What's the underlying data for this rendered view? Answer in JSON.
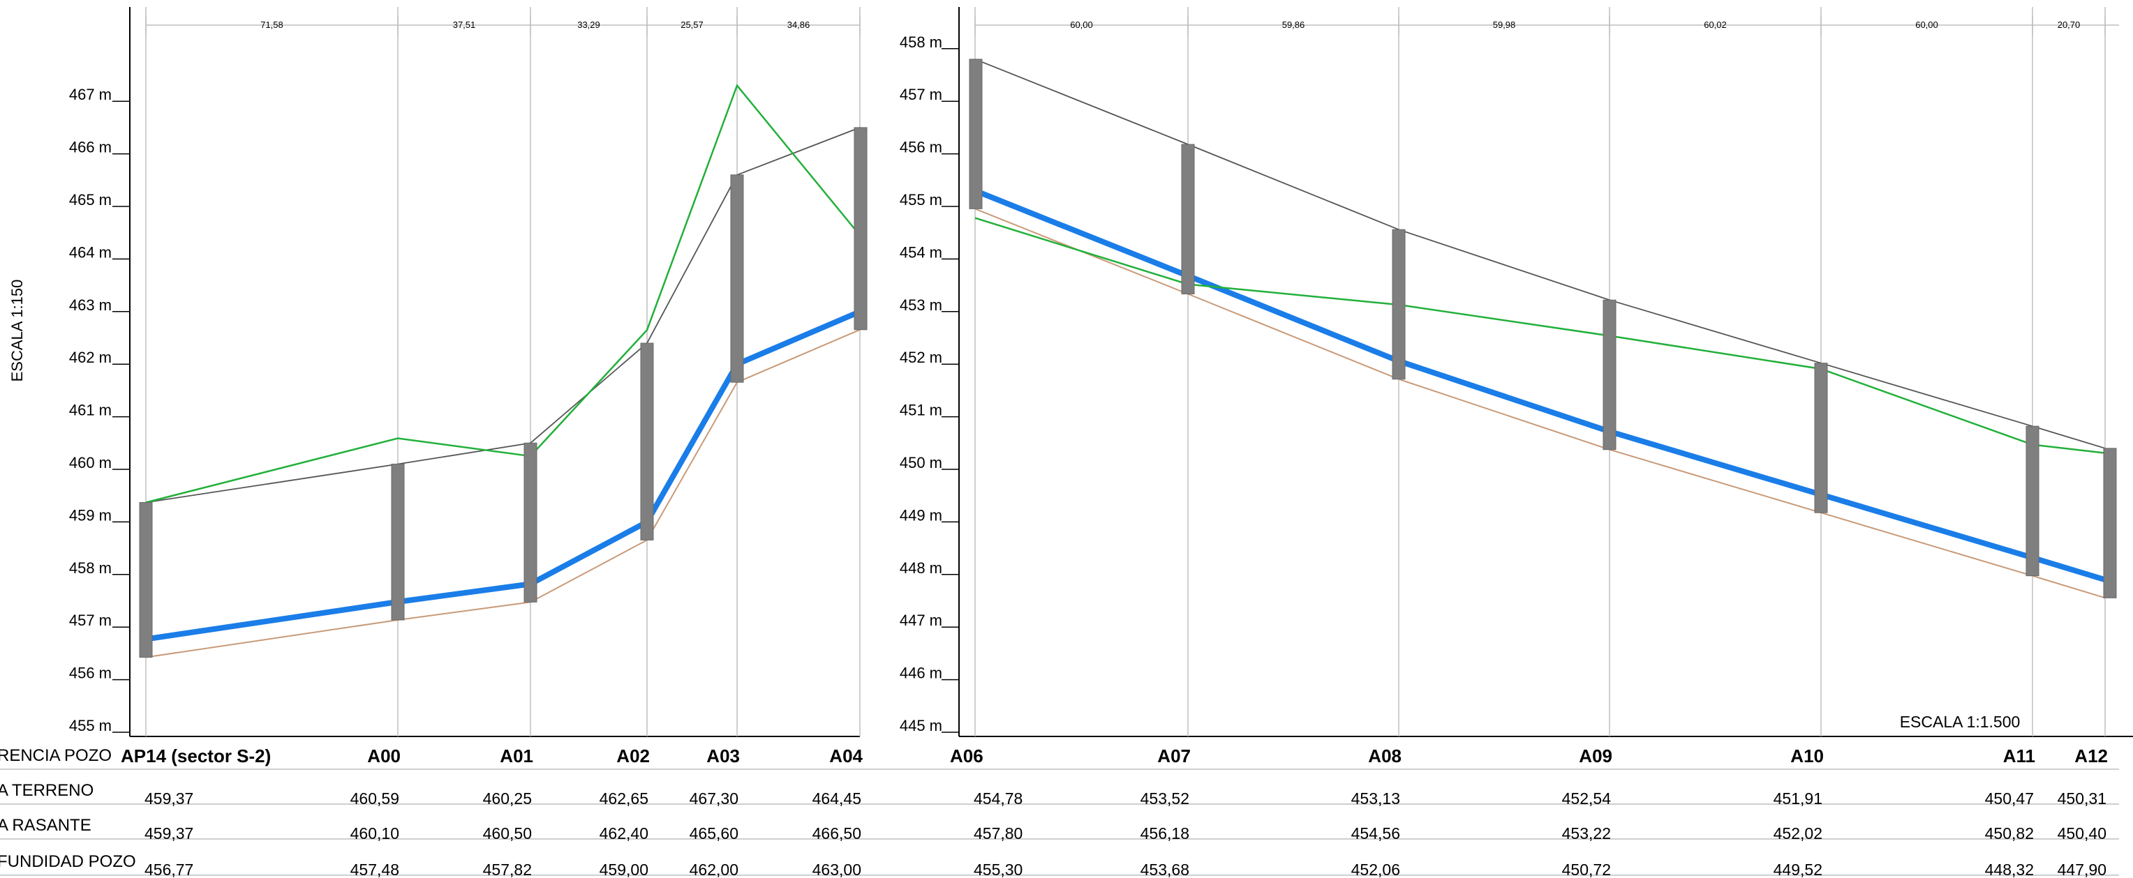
{
  "left_profile": {
    "axis_labels": [
      "455 m",
      "456 m",
      "457 m",
      "458 m",
      "459 m",
      "460 m",
      "461 m",
      "462 m",
      "463 m",
      "464 m",
      "465 m",
      "466 m",
      "467 m"
    ],
    "y_range": [
      455,
      468
    ],
    "scale_label": "ESCALA 1:150",
    "wells": [
      {
        "name": "AP14 (sector S-2)",
        "terreno": 459.37,
        "rasante": 459.37,
        "fondo": 456.77,
        "terreno_label": "459,37",
        "rasante_label": "459,37",
        "fondo_label": "456,77"
      },
      {
        "name": "A00",
        "terreno": 460.59,
        "rasante": 460.1,
        "fondo": 457.48,
        "terreno_label": "460,59",
        "rasante_label": "460,10",
        "fondo_label": "457,48"
      },
      {
        "name": "A01",
        "terreno": 460.25,
        "rasante": 460.5,
        "fondo": 457.82,
        "terreno_label": "460,25",
        "rasante_label": "460,50",
        "fondo_label": "457,82"
      },
      {
        "name": "A02",
        "terreno": 462.65,
        "rasante": 462.4,
        "fondo": 459.0,
        "terreno_label": "462,65",
        "rasante_label": "462,40",
        "fondo_label": "459,00"
      },
      {
        "name": "A03",
        "terreno": 467.3,
        "rasante": 465.6,
        "fondo": 462.0,
        "terreno_label": "467,30",
        "rasante_label": "465,60",
        "fondo_label": "462,00"
      },
      {
        "name": "A04",
        "terreno": 464.45,
        "rasante": 466.5,
        "fondo": 463.0,
        "terreno_label": "464,45",
        "rasante_label": "466,50",
        "fondo_label": "463,00"
      }
    ],
    "distances": [
      "71,58",
      "37,51",
      "33,29",
      "25,57",
      "34,86"
    ]
  },
  "right_profile": {
    "axis_labels": [
      "445 m",
      "446 m",
      "447 m",
      "448 m",
      "449 m",
      "450 m",
      "451 m",
      "452 m",
      "453 m",
      "454 m",
      "455 m",
      "456 m",
      "457 m",
      "458 m"
    ],
    "y_range": [
      445,
      458.3
    ],
    "scale_label": "ESCALA 1:1.500",
    "wells": [
      {
        "name": "A06",
        "terreno": 454.78,
        "rasante": 457.8,
        "fondo": 455.3,
        "terreno_label": "454,78",
        "rasante_label": "457,80",
        "fondo_label": "455,30"
      },
      {
        "name": "A07",
        "terreno": 453.52,
        "rasante": 456.18,
        "fondo": 453.68,
        "terreno_label": "453,52",
        "rasante_label": "456,18",
        "fondo_label": "453,68"
      },
      {
        "name": "A08",
        "terreno": 453.13,
        "rasante": 454.56,
        "fondo": 452.06,
        "terreno_label": "453,13",
        "rasante_label": "454,56",
        "fondo_label": "452,06"
      },
      {
        "name": "A09",
        "terreno": 452.54,
        "rasante": 453.22,
        "fondo": 450.72,
        "terreno_label": "452,54",
        "rasante_label": "453,22",
        "fondo_label": "450,72"
      },
      {
        "name": "A10",
        "terreno": 451.91,
        "rasante": 452.02,
        "fondo": 449.52,
        "terreno_label": "451,91",
        "rasante_label": "452,02",
        "fondo_label": "449,52"
      },
      {
        "name": "A11",
        "terreno": 450.47,
        "rasante": 450.82,
        "fondo": 448.32,
        "terreno_label": "450,47",
        "rasante_label": "450,82",
        "fondo_label": "448,32"
      },
      {
        "name": "A12",
        "terreno": 450.31,
        "rasante": 450.4,
        "fondo": 447.9,
        "terreno_label": "450,31",
        "rasante_label": "450,40",
        "fondo_label": "447,90"
      }
    ],
    "distances": [
      "60,00",
      "59,86",
      "59,98",
      "60,02",
      "60,00",
      "20,70"
    ]
  },
  "rows": {
    "referencia": "RENCIA POZO",
    "terreno": "A TERRENO",
    "rasante": "A RASANTE",
    "profundidad": "FUNDIDAD POZO"
  },
  "colors": {
    "terrain": "#22b03a",
    "rasante": "#555555",
    "pipe": "#1a7de8",
    "invert": "#c89a78",
    "manhole": "#7f7f7f",
    "grid": "#bfbfbf"
  }
}
